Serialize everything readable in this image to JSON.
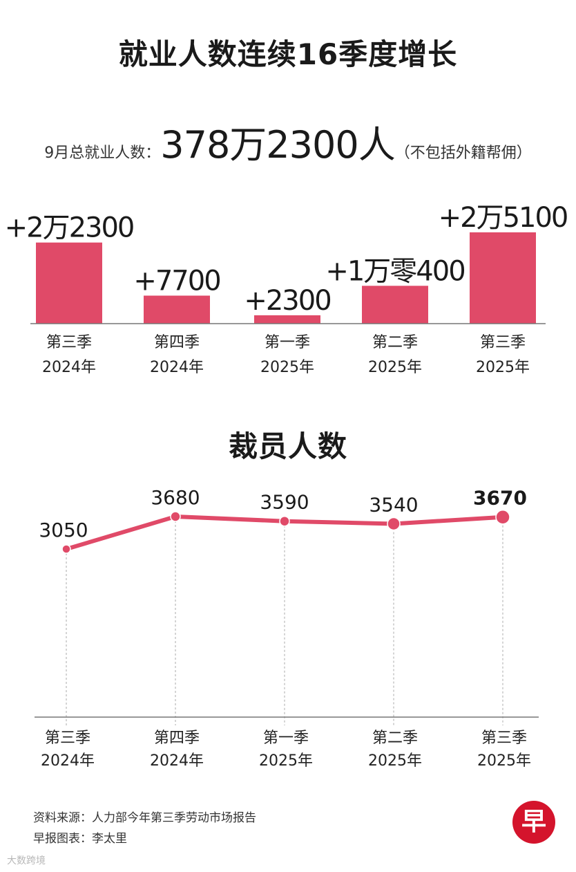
{
  "chart_data": [
    {
      "type": "bar",
      "title": "就业人数连续16季度增长",
      "total_label": "9月总就业人数：",
      "total_value": "378万2300人",
      "total_note": "（不包括外籍帮佣）",
      "categories": [
        [
          "第三季",
          "2024年"
        ],
        [
          "第四季",
          "2024年"
        ],
        [
          "第一季",
          "2025年"
        ],
        [
          "第二季",
          "2025年"
        ],
        [
          "第三季",
          "2025年"
        ]
      ],
      "values": [
        22300,
        7700,
        2300,
        10400,
        25100
      ],
      "value_labels": [
        "+2万2300",
        "+7700",
        "+2300",
        "+1万零400",
        "+2万5100"
      ],
      "color": "#e04a68"
    },
    {
      "type": "line",
      "title": "裁员人数",
      "categories": [
        [
          "第三季",
          "2024年"
        ],
        [
          "第四季",
          "2024年"
        ],
        [
          "第一季",
          "2025年"
        ],
        [
          "第二季",
          "2025年"
        ],
        [
          "第三季",
          "2025年"
        ]
      ],
      "values": [
        3050,
        3680,
        3590,
        3540,
        3670
      ],
      "value_labels": [
        "3050",
        "3680",
        "3590",
        "3540",
        "3670"
      ],
      "color": "#e04a68"
    }
  ],
  "footer": {
    "source": "资料来源：人力部今年第三季劳动市场报告",
    "credit": "早报图表：李太里",
    "logo": "早",
    "watermark": "大数跨境"
  }
}
